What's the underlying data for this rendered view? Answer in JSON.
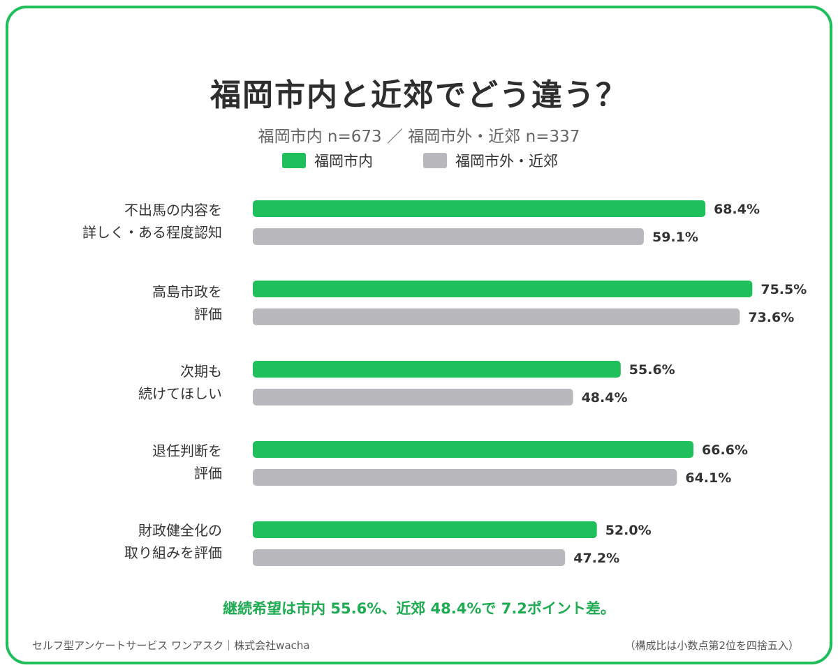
{
  "chart_data": {
    "type": "bar",
    "orientation": "horizontal",
    "title": "福岡市内と近郊でどう違う？",
    "subtitle": "福岡市内 n=673 ／ 福岡市外・近郊 n=337",
    "categories": [
      [
        "不出馬の内容を",
        "詳しく・ある程度認知"
      ],
      [
        "高島市政を",
        "評価"
      ],
      [
        "次期も",
        "続けてほしい"
      ],
      [
        "退任判断を",
        "評価"
      ],
      [
        "財政健全化の",
        "取り組みを評価"
      ]
    ],
    "series": [
      {
        "name": "福岡市内",
        "color": "#1fbf5b",
        "values": [
          68.4,
          75.5,
          55.6,
          66.6,
          52.0
        ],
        "labels": [
          "68.4%",
          "75.5%",
          "55.6%",
          "66.6%",
          "52.0%"
        ]
      },
      {
        "name": "福岡市外・近郊",
        "color": "#b9b9bd",
        "values": [
          59.1,
          73.6,
          48.4,
          64.1,
          47.2
        ],
        "labels": [
          "59.1%",
          "73.6%",
          "48.4%",
          "64.1%",
          "47.2%"
        ]
      }
    ],
    "xlim": [
      0,
      100
    ],
    "legend_position": "top",
    "grid": false
  },
  "footnote": "継続希望は市内 55.6%、近郊 48.4%で 7.2ポイント差。",
  "footer": {
    "left": "セルフ型アンケートサービス ワンアスク｜株式会社wacha",
    "right": "（構成比は小数点第2位を四捨五入）"
  },
  "colors": {
    "accent": "#1fbf5b",
    "secondary": "#b9b9bd",
    "border": "#1fbf5b",
    "footnote": "#1fab52"
  }
}
